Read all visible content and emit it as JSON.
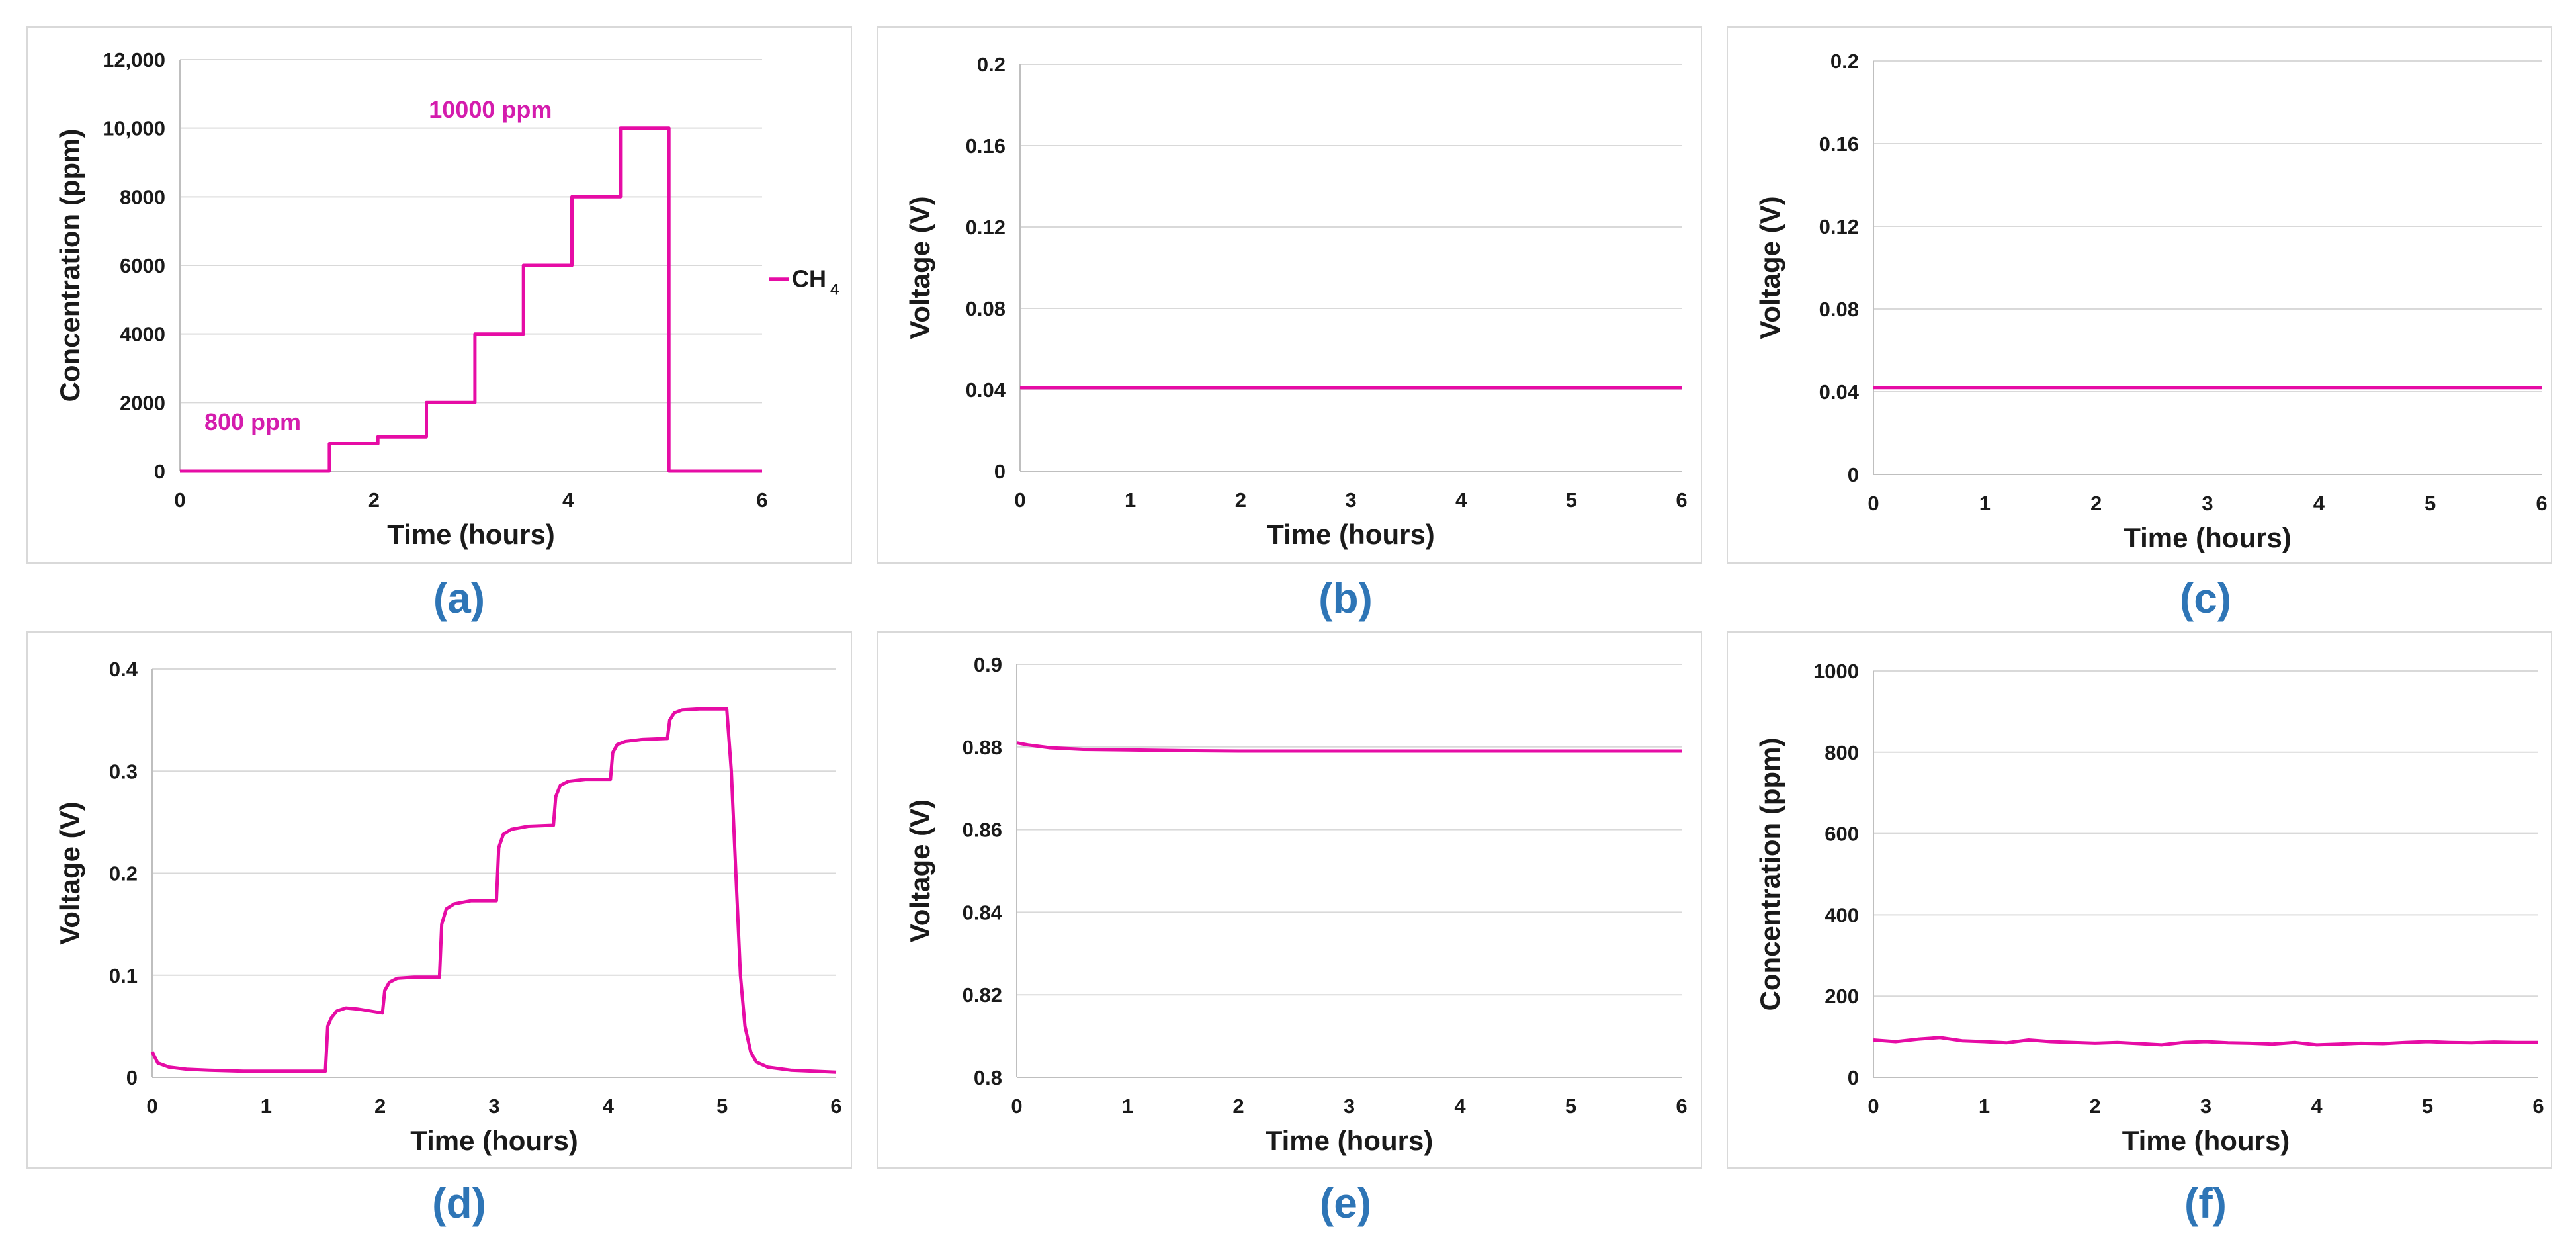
{
  "series_color": "#e60ca5",
  "caption_color": "#2e75b6",
  "chart_data": [
    {
      "id": "a",
      "type": "line",
      "caption": "(a)",
      "xlabel": "Time (hours)",
      "ylabel": "Concentration (ppm)",
      "xlim": [
        0,
        6
      ],
      "ylim": [
        0,
        12000
      ],
      "xticks": [
        "0",
        "2",
        "4",
        "6"
      ],
      "xtick_values": [
        0,
        2,
        4,
        6
      ],
      "yticks": [
        "0",
        "2000",
        "4000",
        "6000",
        "8000",
        "10,000",
        "12,000"
      ],
      "ytick_values": [
        0,
        2000,
        4000,
        6000,
        8000,
        10000,
        12000
      ],
      "series": [
        {
          "name": "CH4",
          "x": [
            0,
            1.54,
            1.54,
            2.04,
            2.04,
            2.54,
            2.54,
            3.04,
            3.04,
            3.54,
            3.54,
            4.04,
            4.04,
            4.54,
            4.54,
            5.04,
            5.04,
            6
          ],
          "y": [
            0,
            0,
            800,
            800,
            1000,
            1000,
            2000,
            2000,
            4000,
            4000,
            6000,
            6000,
            8000,
            8000,
            10000,
            10000,
            0,
            0
          ]
        }
      ],
      "legend": {
        "label": "CH",
        "subscript": "4",
        "position": "right"
      },
      "annotations": [
        {
          "text": "800 ppm",
          "x": 0.75,
          "y": 1200
        },
        {
          "text": "10000 ppm",
          "x": 3.2,
          "y": 10300
        }
      ]
    },
    {
      "id": "b",
      "type": "line",
      "caption": "(b)",
      "xlabel": "Time (hours)",
      "ylabel": "Voltage (V)",
      "xlim": [
        0,
        6
      ],
      "ylim": [
        0,
        0.2
      ],
      "xticks": [
        "0",
        "1",
        "2",
        "3",
        "4",
        "5",
        "6"
      ],
      "xtick_values": [
        0,
        1,
        2,
        3,
        4,
        5,
        6
      ],
      "yticks": [
        "0",
        "0.04",
        "0.08",
        "0.12",
        "0.16",
        "0.2"
      ],
      "ytick_values": [
        0,
        0.04,
        0.08,
        0.12,
        0.16,
        0.2
      ],
      "series": [
        {
          "name": "Voltage",
          "x": [
            0,
            6
          ],
          "y": [
            0.041,
            0.041
          ]
        }
      ]
    },
    {
      "id": "c",
      "type": "line",
      "caption": "(c)",
      "xlabel": "Time (hours)",
      "ylabel": "Voltage (V)",
      "xlim": [
        0,
        6
      ],
      "ylim": [
        0,
        0.2
      ],
      "xticks": [
        "0",
        "1",
        "2",
        "3",
        "4",
        "5",
        "6"
      ],
      "xtick_values": [
        0,
        1,
        2,
        3,
        4,
        5,
        6
      ],
      "yticks": [
        "0",
        "0.04",
        "0.08",
        "0.12",
        "0.16",
        "0.2"
      ],
      "ytick_values": [
        0,
        0.04,
        0.08,
        0.12,
        0.16,
        0.2
      ],
      "series": [
        {
          "name": "Voltage",
          "x": [
            0,
            6
          ],
          "y": [
            0.042,
            0.042
          ]
        }
      ]
    },
    {
      "id": "d",
      "type": "line",
      "caption": "(d)",
      "xlabel": "Time (hours)",
      "ylabel": "Voltage (V)",
      "xlim": [
        0,
        6
      ],
      "ylim": [
        0,
        0.4
      ],
      "xticks": [
        "0",
        "1",
        "2",
        "3",
        "4",
        "5",
        "6"
      ],
      "xtick_values": [
        0,
        1,
        2,
        3,
        4,
        5,
        6
      ],
      "yticks": [
        "0",
        "0.1",
        "0.2",
        "0.3",
        "0.4"
      ],
      "ytick_values": [
        0,
        0.1,
        0.2,
        0.3,
        0.4
      ],
      "series": [
        {
          "name": "Voltage",
          "x": [
            0,
            0.05,
            0.15,
            0.3,
            0.5,
            0.8,
            1.0,
            1.3,
            1.52,
            1.54,
            1.57,
            1.62,
            1.7,
            1.8,
            2.02,
            2.04,
            2.08,
            2.15,
            2.3,
            2.52,
            2.54,
            2.58,
            2.65,
            2.8,
            3.02,
            3.04,
            3.08,
            3.15,
            3.3,
            3.52,
            3.54,
            3.58,
            3.65,
            3.8,
            4.02,
            4.04,
            4.08,
            4.15,
            4.3,
            4.52,
            4.54,
            4.58,
            4.65,
            4.8,
            5.04,
            5.08,
            5.12,
            5.16,
            5.2,
            5.25,
            5.3,
            5.4,
            5.6,
            6
          ],
          "y": [
            0.025,
            0.014,
            0.01,
            0.008,
            0.007,
            0.006,
            0.006,
            0.006,
            0.006,
            0.05,
            0.058,
            0.065,
            0.068,
            0.067,
            0.063,
            0.085,
            0.093,
            0.097,
            0.098,
            0.098,
            0.15,
            0.165,
            0.17,
            0.173,
            0.173,
            0.225,
            0.238,
            0.243,
            0.246,
            0.247,
            0.275,
            0.286,
            0.29,
            0.292,
            0.292,
            0.318,
            0.326,
            0.329,
            0.331,
            0.332,
            0.35,
            0.357,
            0.36,
            0.361,
            0.361,
            0.3,
            0.2,
            0.1,
            0.05,
            0.025,
            0.015,
            0.01,
            0.007,
            0.005
          ]
        }
      ]
    },
    {
      "id": "e",
      "type": "line",
      "caption": "(e)",
      "xlabel": "Time (hours)",
      "ylabel": "Voltage (V)",
      "xlim": [
        0,
        6
      ],
      "ylim": [
        0.8,
        0.9
      ],
      "xticks": [
        "0",
        "1",
        "2",
        "3",
        "4",
        "5",
        "6"
      ],
      "xtick_values": [
        0,
        1,
        2,
        3,
        4,
        5,
        6
      ],
      "yticks": [
        "0.8",
        "0.82",
        "0.84",
        "0.86",
        "0.88",
        "0.9"
      ],
      "ytick_values": [
        0.8,
        0.82,
        0.84,
        0.86,
        0.88,
        0.9
      ],
      "series": [
        {
          "name": "Voltage",
          "x": [
            0,
            0.1,
            0.3,
            0.6,
            1.0,
            1.5,
            2.0,
            3.0,
            4.0,
            5.0,
            6.0
          ],
          "y": [
            0.881,
            0.8805,
            0.8798,
            0.8794,
            0.8793,
            0.8791,
            0.879,
            0.879,
            0.879,
            0.879,
            0.879
          ]
        }
      ]
    },
    {
      "id": "f",
      "type": "line",
      "caption": "(f)",
      "xlabel": "Time (hours)",
      "ylabel": "Concentration (ppm)",
      "xlim": [
        0,
        6
      ],
      "ylim": [
        0,
        1000
      ],
      "xticks": [
        "0",
        "1",
        "2",
        "3",
        "4",
        "5",
        "6"
      ],
      "xtick_values": [
        0,
        1,
        2,
        3,
        4,
        5,
        6
      ],
      "yticks": [
        "0",
        "200",
        "400",
        "600",
        "800",
        "1000"
      ],
      "ytick_values": [
        0,
        200,
        400,
        600,
        800,
        1000
      ],
      "series": [
        {
          "name": "Concentration",
          "x": [
            0,
            0.2,
            0.4,
            0.6,
            0.8,
            1.0,
            1.2,
            1.4,
            1.6,
            1.8,
            2.0,
            2.2,
            2.4,
            2.6,
            2.8,
            3.0,
            3.2,
            3.4,
            3.6,
            3.8,
            4.0,
            4.2,
            4.4,
            4.6,
            4.8,
            5.0,
            5.2,
            5.4,
            5.6,
            5.8,
            6.0
          ],
          "y": [
            92,
            88,
            94,
            98,
            90,
            88,
            85,
            92,
            88,
            86,
            84,
            86,
            83,
            80,
            86,
            88,
            85,
            84,
            82,
            86,
            80,
            82,
            84,
            83,
            86,
            88,
            86,
            85,
            87,
            86,
            86
          ]
        }
      ]
    }
  ]
}
